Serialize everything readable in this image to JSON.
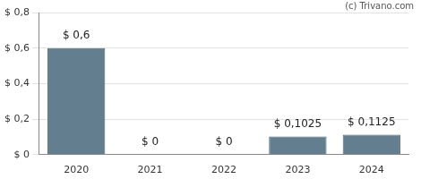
{
  "chart_data": {
    "type": "bar",
    "annotation": "(c) Trivano.com",
    "categories": [
      "2020",
      "2021",
      "2022",
      "2023",
      "2024"
    ],
    "values": [
      0.6,
      0,
      0,
      0.1025,
      0.1125
    ],
    "value_labels": [
      "$ 0,6",
      "$ 0",
      "$ 0",
      "$ 0,1025",
      "$ 0,1125"
    ],
    "data_labels": true,
    "color": "#637e8e",
    "ylim": [
      0,
      0.8
    ],
    "yticks": [
      {
        "value": 0,
        "label": "$ 0"
      },
      {
        "value": 0.2,
        "label": "$ 0,2"
      },
      {
        "value": 0.4,
        "label": "$ 0,4"
      },
      {
        "value": 0.6,
        "label": "$ 0,6"
      },
      {
        "value": 0.8,
        "label": "$ 0,8"
      }
    ],
    "grid": true
  }
}
